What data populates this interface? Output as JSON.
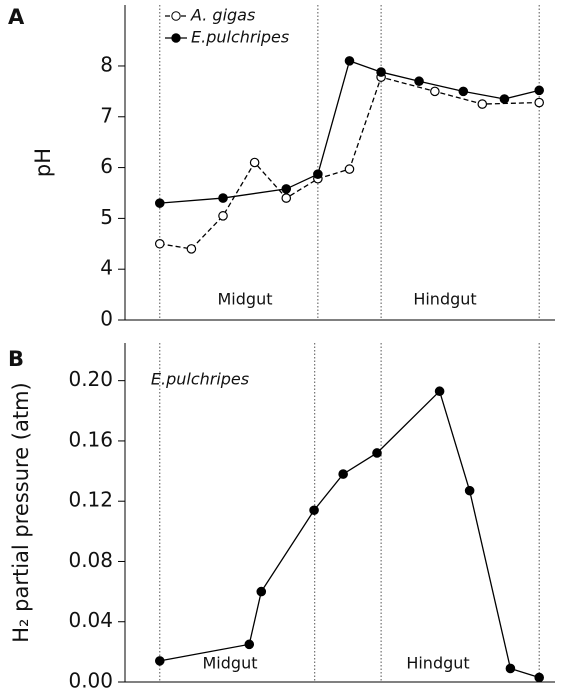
{
  "chart_data": [
    {
      "type": "line",
      "label": "A",
      "ylabel": "pH",
      "xlim": [
        -1.1,
        12.5
      ],
      "ylim": [
        0,
        9.2
      ],
      "yticks": [
        0,
        4,
        5,
        6,
        7,
        8
      ],
      "axis_break": [
        0,
        4
      ],
      "vlines": [
        0,
        5,
        7,
        12
      ],
      "annotations": [
        "Midgut",
        "Hindgut"
      ],
      "legend": "upper left",
      "series": [
        {
          "name": "A. gigas",
          "color": "#000000",
          "marker": "open",
          "linestyle": "dashed",
          "x": [
            0,
            1,
            2,
            3,
            4,
            5,
            6,
            7,
            8.7,
            10.2,
            12
          ],
          "values": [
            4.5,
            4.4,
            5.05,
            6.1,
            5.4,
            5.78,
            5.97,
            7.78,
            7.5,
            7.25,
            7.28
          ]
        },
        {
          "name": "E.pulchripes",
          "color": "#000000",
          "marker": "filled",
          "linestyle": "solid",
          "x": [
            0,
            2,
            4,
            5,
            6,
            7,
            8.2,
            9.6,
            10.9,
            12
          ],
          "values": [
            5.3,
            5.4,
            5.58,
            5.87,
            8.1,
            7.88,
            7.7,
            7.5,
            7.35,
            7.52
          ]
        }
      ]
    },
    {
      "type": "line",
      "label": "B",
      "ylabel": "H₂ partial pressure (atm)",
      "xlim": [
        -1.1,
        12.5
      ],
      "ylim": [
        0,
        0.225
      ],
      "yticks": [
        {
          "value": 0,
          "label": "0.00"
        },
        {
          "value": 0.04,
          "label": "0.04"
        },
        {
          "value": 0.08,
          "label": "0.08"
        },
        {
          "value": 0.12,
          "label": "0.12"
        },
        {
          "value": 0.16,
          "label": "0.16"
        },
        {
          "value": 0.2,
          "label": "0.20"
        }
      ],
      "vlines": [
        0,
        4.9,
        7,
        12
      ],
      "annotations": [
        "E.pulchripes",
        "Midgut",
        "Hindgut"
      ],
      "series": [
        {
          "color": "#000000",
          "marker": "filled",
          "linestyle": "solid",
          "x": [
            0,
            2.83,
            3.21,
            4.88,
            5.8,
            6.87,
            8.85,
            9.8,
            11.09,
            12
          ],
          "values": [
            0.014,
            0.025,
            0.06,
            0.114,
            0.138,
            0.152,
            0.193,
            0.127,
            0.009,
            0.003
          ]
        }
      ]
    }
  ]
}
